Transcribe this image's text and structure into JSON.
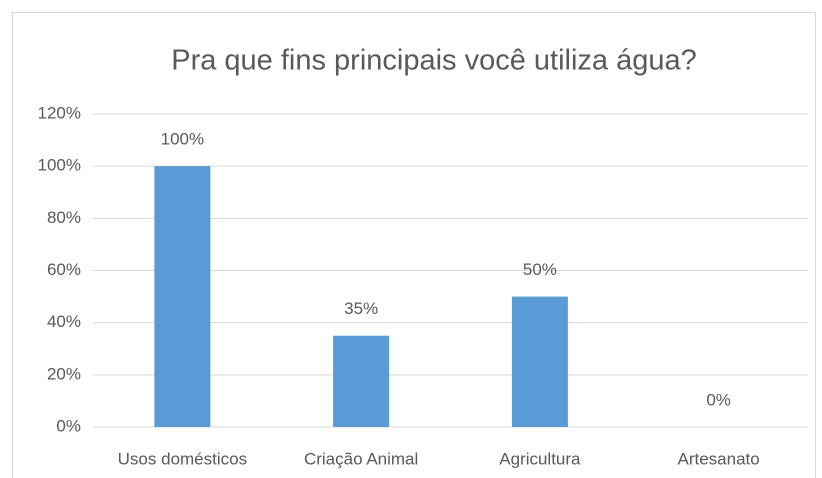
{
  "chart_data": {
    "type": "bar",
    "title": "Pra que fins principais você utiliza água?",
    "categories": [
      "Usos domésticos",
      "Criação Animal",
      "Agricultura",
      "Artesanato"
    ],
    "values": [
      100,
      35,
      50,
      0
    ],
    "value_labels": [
      "100%",
      "35%",
      "50%",
      "0%"
    ],
    "color": "#5b9bd5",
    "ylim": [
      0,
      120
    ],
    "yticks": [
      {
        "value": 0,
        "label": "0%"
      },
      {
        "value": 20,
        "label": "20%"
      },
      {
        "value": 40,
        "label": "40%"
      },
      {
        "value": 60,
        "label": "60%"
      },
      {
        "value": 80,
        "label": "80%"
      },
      {
        "value": 100,
        "label": "100%"
      },
      {
        "value": 120,
        "label": "120%"
      }
    ],
    "grid": true
  }
}
